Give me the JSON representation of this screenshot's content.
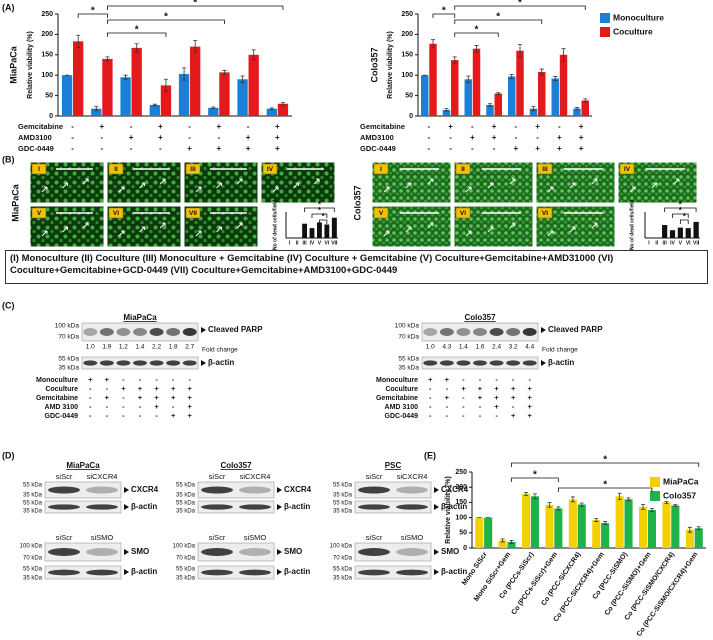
{
  "panel_labels": [
    "(A)",
    "(B)",
    "(C)",
    "(D)",
    "(E)"
  ],
  "chart_data": [
    {
      "type": "bar",
      "title": "MiaPaCa",
      "ylabel": "Relative viability (%)",
      "categories": [
        null,
        null,
        null,
        null,
        null,
        null,
        null,
        null
      ],
      "series": [
        {
          "name": "Monoculture",
          "color": "#1a7fd6",
          "values": [
            100,
            18,
            95,
            27,
            103,
            20,
            90,
            18
          ],
          "errors": [
            0,
            5,
            5,
            2,
            15,
            2,
            8,
            2
          ]
        },
        {
          "name": "Coculture",
          "color": "#e3191c",
          "values": [
            183,
            140,
            167,
            75,
            170,
            107,
            150,
            30
          ],
          "errors": [
            15,
            5,
            10,
            15,
            15,
            5,
            12,
            3
          ]
        }
      ],
      "ylim": [
        0,
        250
      ],
      "yticks": [
        0,
        50,
        100,
        150,
        200,
        250
      ],
      "legend": "none",
      "annotations": [
        "*",
        "*",
        "*",
        "*"
      ],
      "treatments": [
        {
          "name": "Gemcitabine",
          "signs": [
            "-",
            "+",
            "-",
            "+",
            "-",
            "+",
            "-",
            "+"
          ]
        },
        {
          "name": "AMD3100",
          "signs": [
            "-",
            "-",
            "+",
            "+",
            "-",
            "-",
            "+",
            "+"
          ]
        },
        {
          "name": "GDC-0449",
          "signs": [
            "-",
            "-",
            "-",
            "-",
            "+",
            "+",
            "+",
            "+"
          ]
        }
      ]
    },
    {
      "type": "bar",
      "title": "Colo357",
      "ylabel": "Relative viability (%)",
      "categories": [
        null,
        null,
        null,
        null,
        null,
        null,
        null,
        null
      ],
      "series": [
        {
          "name": "Monoculture",
          "color": "#1a7fd6",
          "values": [
            100,
            15,
            90,
            27,
            97,
            18,
            92,
            18
          ],
          "errors": [
            0,
            3,
            8,
            3,
            5,
            5,
            5,
            3
          ]
        },
        {
          "name": "Coculture",
          "color": "#e3191c",
          "values": [
            177,
            137,
            165,
            55,
            160,
            108,
            150,
            38
          ],
          "errors": [
            10,
            8,
            8,
            2,
            15,
            7,
            15,
            4
          ]
        }
      ],
      "ylim": [
        0,
        250
      ],
      "yticks": [
        0,
        50,
        100,
        150,
        200,
        250
      ],
      "legend": "right",
      "annotations": [
        "*",
        "*",
        "*",
        "*"
      ],
      "treatments": [
        {
          "name": "Gemcitabine",
          "signs": [
            "-",
            "+",
            "-",
            "+",
            "-",
            "+",
            "-",
            "+"
          ]
        },
        {
          "name": "AMD3100",
          "signs": [
            "-",
            "-",
            "+",
            "+",
            "-",
            "-",
            "+",
            "+"
          ]
        },
        {
          "name": "GDC-0449",
          "signs": [
            "-",
            "-",
            "-",
            "-",
            "+",
            "+",
            "+",
            "+"
          ]
        }
      ]
    },
    {
      "type": "bar",
      "ylabel": "No of dead cells/field",
      "categories": [
        "I",
        "II",
        "III",
        "IV",
        "V",
        "VI",
        "VII"
      ],
      "values": [
        2,
        2,
        55,
        38,
        60,
        52,
        78
      ],
      "color": "#111111",
      "ylim": [
        0,
        100
      ],
      "annotations": [
        "*",
        "*",
        "*"
      ]
    },
    {
      "type": "bar",
      "ylabel": "No of dead cells/field",
      "categories": [
        "I",
        "II",
        "III",
        "IV",
        "V",
        "VI",
        "VII"
      ],
      "values": [
        2,
        2,
        50,
        30,
        40,
        38,
        62
      ],
      "color": "#111111",
      "ylim": [
        0,
        100
      ],
      "annotations": [
        "*",
        "*",
        "*"
      ]
    },
    {
      "type": "bar",
      "ylabel": "Relative viability (%)",
      "categories": [
        "Mono SiScr",
        "Mono SiScr+Gem",
        "Co (PCCs-SiScr)",
        "Co (PCCs-SiScr)+Gem",
        "Co (PCC-SiCXCR4)",
        "Co (PCC-SiCXCR4)+Gem",
        "Co (PCC-SiSMO)",
        "Co (PCC-SiSMO)+Gem",
        "Co (PCC-SiSMO/CXCR4)",
        "Co (PCC-SiSMO/CXCR4)+Gem"
      ],
      "series": [
        {
          "name": "MiaPaCa",
          "color": "#f5d000",
          "values": [
            100,
            25,
            178,
            142,
            160,
            92,
            170,
            135,
            150,
            60
          ],
          "errors": [
            0,
            5,
            5,
            8,
            8,
            5,
            10,
            8,
            3,
            8
          ]
        },
        {
          "name": "Colo357",
          "color": "#1fb24a",
          "values": [
            100,
            20,
            170,
            130,
            143,
            82,
            160,
            125,
            140,
            65
          ],
          "errors": [
            0,
            5,
            8,
            5,
            5,
            5,
            5,
            5,
            3,
            5
          ]
        }
      ],
      "ylim": [
        0,
        250
      ],
      "yticks": [
        0,
        50,
        100,
        150,
        200,
        250
      ],
      "legend": "upper right",
      "annotations": [
        "*",
        "*",
        "*"
      ]
    }
  ],
  "panel_b": {
    "cell_lines": [
      "MiaPaCa",
      "Colo357"
    ],
    "left_labels": [
      "I",
      "II",
      "III",
      "IV",
      "V",
      "VI",
      "VII"
    ],
    "right_labels": [
      "I",
      "II",
      "III",
      "IV",
      "V",
      "VI",
      "VI"
    ],
    "caption": "(I) Monoculture (II) Coculture (III) Monoculture + Gemcitabine (IV) Coculture + Gemcitabine (V) Coculture+Gemcitabine+AMD31000 (VI) Coculture+Gemcitabine+GCD-0449 (VII) Coculture+Gemcitabine+AMD3100+GDC-0449"
  },
  "panel_c": {
    "blots": [
      {
        "cell_line": "MiaPaCa",
        "markers": [
          "100 kDa",
          "70 kDa",
          "55 kDa",
          "35 kDa"
        ],
        "fold_change": [
          "1.0",
          "1.9",
          "1.2",
          "1.4",
          "2.2",
          "1.8",
          "2.7"
        ]
      },
      {
        "cell_line": "Colo357",
        "markers": [
          "100 kDa",
          "70 kDa",
          "55 kDa",
          "35 kDa"
        ],
        "fold_change": [
          "1.0",
          "4.3",
          "1.4",
          "1.6",
          "2.4",
          "3.2",
          "4.4"
        ]
      }
    ],
    "proteins": [
      "Cleaved PARP",
      "β-actin"
    ],
    "fold_change_label": "Fold change",
    "treatments": [
      {
        "name": "Monoculture",
        "signs": [
          "+",
          "+",
          "-",
          "-",
          "-",
          "-",
          "-"
        ]
      },
      {
        "name": "Coculture",
        "signs": [
          "-",
          "-",
          "+",
          "+",
          "+",
          "+",
          "+"
        ]
      },
      {
        "name": "Gemcitabine",
        "signs": [
          "-",
          "+",
          "-",
          "+",
          "+",
          "+",
          "+"
        ]
      },
      {
        "name": "AMD 3100",
        "signs": [
          "-",
          "-",
          "-",
          "-",
          "+",
          "-",
          "+"
        ]
      },
      {
        "name": "GDC-0449",
        "signs": [
          "-",
          "-",
          "-",
          "-",
          "-",
          "+",
          "+"
        ]
      }
    ]
  },
  "panel_d": {
    "groups": [
      {
        "cell_line": "MiaPaCa",
        "lanes_top": [
          "siScr",
          "siCXCR4"
        ],
        "lanes_bottom": [
          "siScr",
          "siSMO"
        ]
      },
      {
        "cell_line": "Colo357",
        "lanes_top": [
          "siScr",
          "siCXCR4"
        ],
        "lanes_bottom": [
          "siScr",
          "siSMO"
        ]
      },
      {
        "cell_line": "PSC",
        "lanes_top": [
          "siScr",
          "siCXCR4"
        ],
        "lanes_bottom": [
          "siScr",
          "siSMO"
        ]
      }
    ],
    "targets": [
      "CXCR4",
      "SMO"
    ],
    "loading": "β-actin",
    "markers_top": [
      "55 kDa",
      "35 kDa",
      "55 kDa",
      "35 kDa"
    ],
    "markers_bottom": [
      "100 kDa",
      "70 kDa",
      "55 kDa",
      "35 kDa"
    ]
  }
}
